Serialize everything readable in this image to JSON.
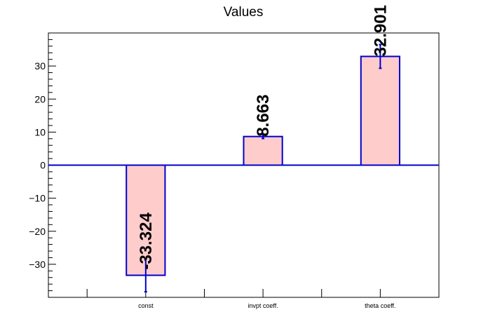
{
  "chart_data": {
    "type": "bar",
    "title": "Values",
    "xlabel": "",
    "ylabel": "",
    "categories": [
      "const",
      "invpt coeff.",
      "theta coeff."
    ],
    "values": [
      -33.324,
      8.663,
      32.901
    ],
    "value_labels": [
      "-33.324",
      "8.663",
      "32.901"
    ],
    "errors": [
      5.0,
      0.6,
      3.6
    ],
    "ylim": [
      -40,
      40
    ],
    "yticks": [
      -30,
      -20,
      -10,
      0,
      10,
      20,
      30
    ],
    "ytick_labels": [
      "−30",
      "−20",
      "−10",
      "0",
      "10",
      "20",
      "30"
    ],
    "grid": false,
    "colors": {
      "bar_fill": "#ffcccc",
      "bar_edge": "#0000cc",
      "zero_line": "#0000cc"
    }
  }
}
